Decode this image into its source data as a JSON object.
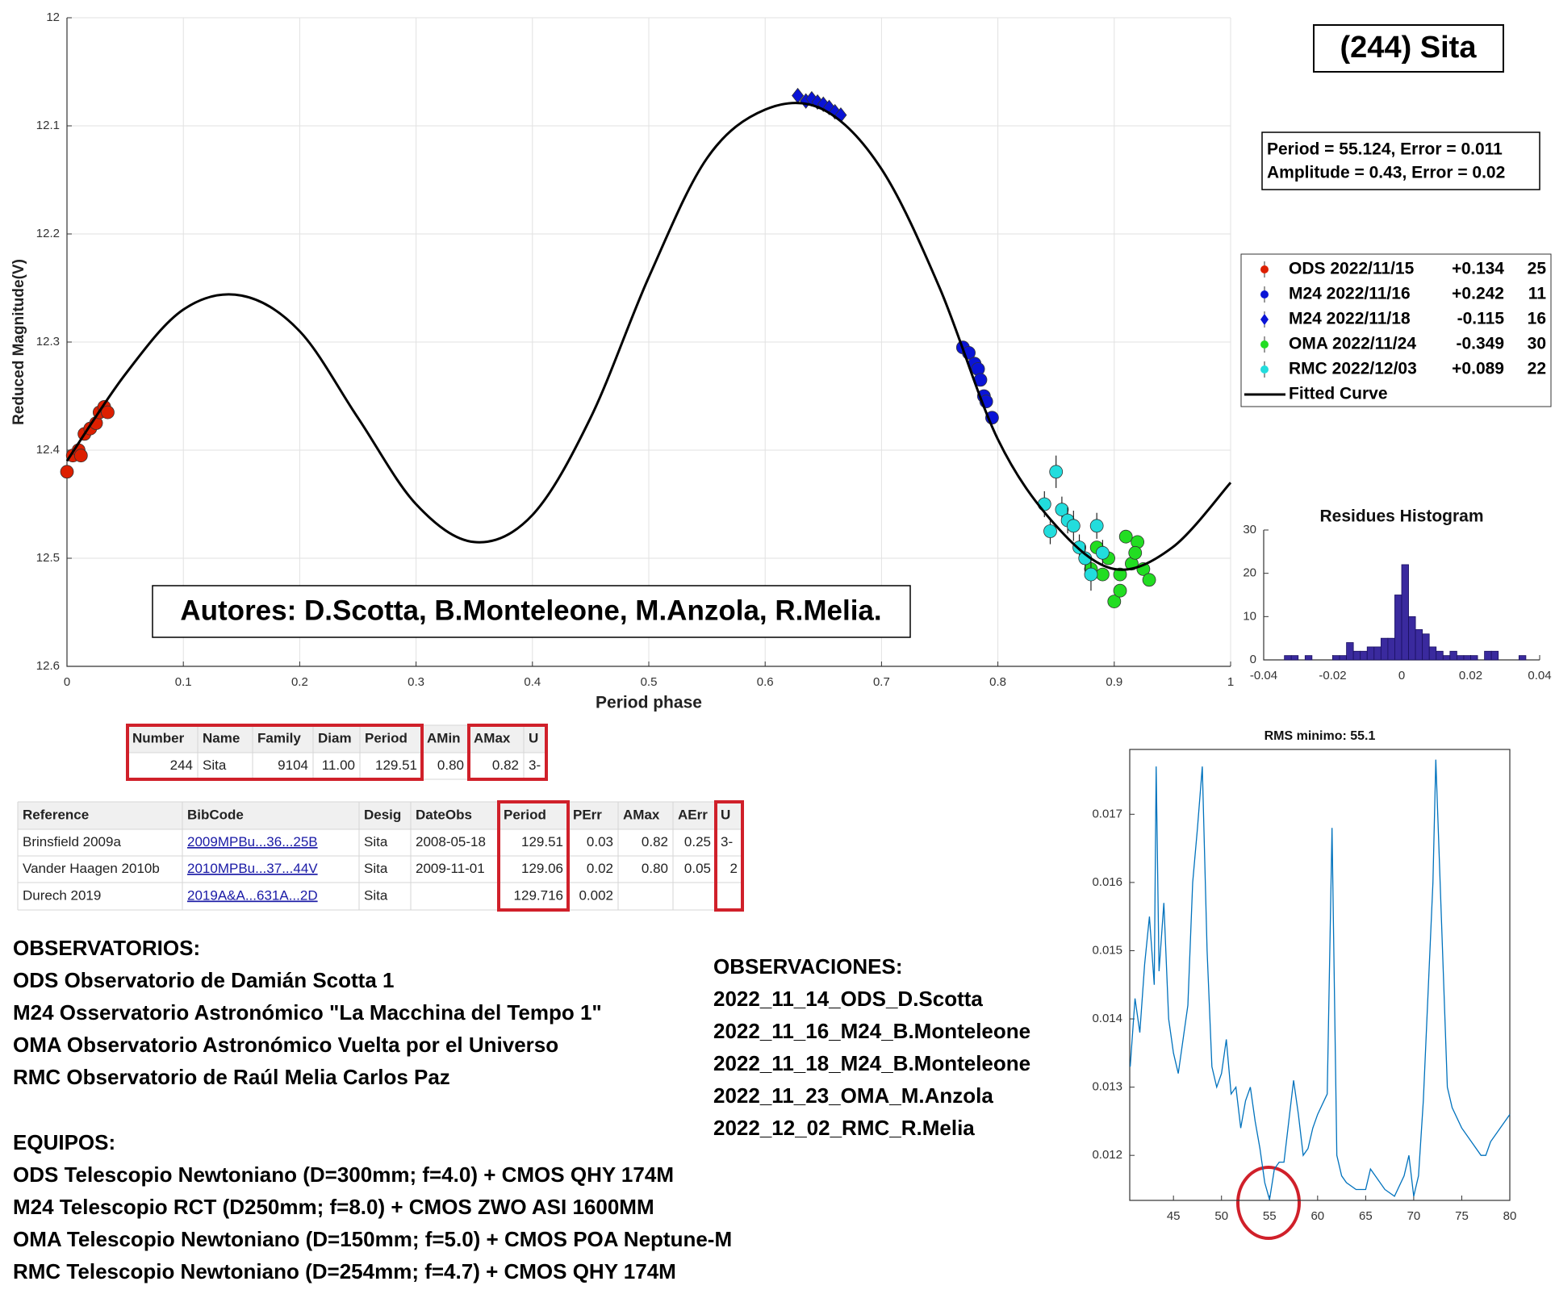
{
  "header": {
    "title": "(244) Sita",
    "fit_lines": [
      "Period =  55.124, Error = 0.011",
      "Amplitude = 0.43, Error = 0.02"
    ]
  },
  "chart_data": [
    {
      "type": "scatter",
      "xlabel": "Period phase",
      "ylabel": "Reduced Magnitude(V)",
      "annotation": "Autores: D.Scotta, B.Monteleone, M.Anzola, R.Melia.",
      "xlim": [
        0,
        1
      ],
      "ylim": [
        12.6,
        12
      ],
      "xticks": [
        0,
        0.1,
        0.2,
        0.3,
        0.4,
        0.5,
        0.6,
        0.7,
        0.8,
        0.9,
        1
      ],
      "yticks": [
        12,
        12.1,
        12.2,
        12.3,
        12.4,
        12.5,
        12.6
      ],
      "grid": true,
      "legend": "outside right",
      "series": [
        {
          "name": "ODS 2022/11/15",
          "offset": "+0.134",
          "count": 25,
          "color": "#dd1f00",
          "marker": "circle",
          "x": [
            0,
            0.005,
            0.01,
            0.012,
            0.015,
            0.02,
            0.025,
            0.028,
            0.032,
            0.035
          ],
          "values": [
            12.42,
            12.405,
            12.4,
            12.405,
            12.385,
            12.38,
            12.375,
            12.365,
            12.36,
            12.365
          ]
        },
        {
          "name": "M24 2022/11/16",
          "offset": "+0.242",
          "count": 11,
          "color": "#0a14d6",
          "marker": "circle",
          "x": [
            0.77,
            0.775,
            0.78,
            0.783,
            0.785,
            0.788,
            0.79,
            0.795
          ],
          "values": [
            12.305,
            12.31,
            12.32,
            12.325,
            12.335,
            12.35,
            12.355,
            12.37
          ]
        },
        {
          "name": "M24 2022/11/18",
          "offset": "-0.115",
          "count": 16,
          "color": "#0a14d6",
          "marker": "diamond",
          "x": [
            0.628,
            0.635,
            0.64,
            0.645,
            0.65,
            0.655,
            0.66,
            0.665
          ],
          "values": [
            12.072,
            12.077,
            12.075,
            12.078,
            12.08,
            12.083,
            12.087,
            12.09
          ]
        },
        {
          "name": "OMA 2022/11/24",
          "offset": "-0.349",
          "count": 30,
          "color": "#22dd22",
          "marker": "circle",
          "x": [
            0.88,
            0.885,
            0.89,
            0.895,
            0.9,
            0.905,
            0.91,
            0.915,
            0.92,
            0.925,
            0.93,
            0.905,
            0.918
          ],
          "values": [
            12.51,
            12.49,
            12.515,
            12.5,
            12.54,
            12.53,
            12.48,
            12.505,
            12.485,
            12.51,
            12.52,
            12.515,
            12.495
          ]
        },
        {
          "name": "RMC 2022/12/03",
          "offset": "+0.089",
          "count": 22,
          "color": "#22dddd",
          "marker": "circle",
          "x": [
            0.84,
            0.845,
            0.85,
            0.855,
            0.86,
            0.865,
            0.87,
            0.875,
            0.88,
            0.885,
            0.89
          ],
          "values": [
            12.45,
            12.475,
            12.42,
            12.455,
            12.465,
            12.47,
            12.49,
            12.5,
            12.515,
            12.47,
            12.495
          ],
          "errors": [
            0.012,
            0.012,
            0.015,
            0.012,
            0.012,
            0.014,
            0.012,
            0.012,
            0.015,
            0.012,
            0.012
          ]
        },
        {
          "name": "Fitted Curve",
          "color": "#000000",
          "marker": "line",
          "x": [
            0,
            0.05,
            0.1,
            0.15,
            0.2,
            0.25,
            0.3,
            0.35,
            0.4,
            0.45,
            0.5,
            0.55,
            0.6,
            0.65,
            0.7,
            0.75,
            0.8,
            0.85,
            0.9,
            0.95,
            1
          ],
          "values": [
            12.41,
            12.33,
            12.27,
            12.257,
            12.29,
            12.37,
            12.45,
            12.485,
            12.46,
            12.37,
            12.24,
            12.13,
            12.085,
            12.085,
            12.14,
            12.25,
            12.39,
            12.47,
            12.51,
            12.49,
            12.43
          ]
        }
      ]
    },
    {
      "type": "histogram",
      "title": "Residues Histogram",
      "color": "#3a2a9e",
      "xlim": [
        -0.04,
        0.04
      ],
      "ylim": [
        0,
        30
      ],
      "xticks": [
        -0.04,
        -0.02,
        0,
        0.02,
        0.04
      ],
      "yticks": [
        0,
        10,
        20,
        30
      ],
      "grid": false,
      "bins": [
        -0.034,
        -0.032,
        -0.03,
        -0.028,
        -0.026,
        -0.024,
        -0.022,
        -0.02,
        -0.018,
        -0.016,
        -0.014,
        -0.012,
        -0.01,
        -0.008,
        -0.006,
        -0.004,
        -0.002,
        0,
        0.002,
        0.004,
        0.006,
        0.008,
        0.01,
        0.012,
        0.014,
        0.016,
        0.018,
        0.02,
        0.022,
        0.024,
        0.026,
        0.028,
        0.03,
        0.032,
        0.034,
        0.036
      ],
      "counts": [
        1,
        1,
        0,
        1,
        0,
        0,
        0,
        1,
        1,
        4,
        2,
        2,
        3,
        3,
        5,
        5,
        15,
        22,
        10,
        7,
        6,
        3,
        2,
        1,
        2,
        1,
        1,
        1,
        0,
        2,
        2,
        0,
        0,
        0,
        1
      ]
    },
    {
      "type": "line",
      "title": "RMS minimo: 55.1",
      "color": "#0072bd",
      "xlim": [
        40.45,
        80
      ],
      "ylim": [
        0.01134,
        0.01795
      ],
      "xticks": [
        45,
        50,
        55,
        60,
        65,
        70,
        75,
        80
      ],
      "yticks": [
        0.012,
        0.013,
        0.014,
        0.015,
        0.016,
        0.017
      ],
      "grid": false,
      "x": [
        40.5,
        41,
        41.5,
        42,
        42.5,
        43,
        43.2,
        43.5,
        44,
        44.5,
        45,
        45.5,
        46,
        46.5,
        47,
        47.5,
        48,
        48.5,
        49,
        49.5,
        50,
        50.5,
        51,
        51.5,
        52,
        52.5,
        53,
        53.5,
        54,
        54.5,
        55,
        55.5,
        56,
        56.5,
        57,
        57.5,
        58,
        58.5,
        59,
        59.5,
        60,
        61,
        61.5,
        62,
        62.5,
        63,
        64,
        65,
        65.5,
        66,
        67,
        68,
        69,
        69.5,
        70,
        70.5,
        71,
        72,
        72.3,
        73,
        73.5,
        74,
        75,
        76,
        77,
        77.5,
        78,
        79,
        80
      ],
      "values": [
        0.0133,
        0.0143,
        0.0138,
        0.0148,
        0.0155,
        0.0145,
        0.0177,
        0.0147,
        0.0157,
        0.014,
        0.0135,
        0.0132,
        0.0137,
        0.0142,
        0.016,
        0.0168,
        0.0177,
        0.015,
        0.0133,
        0.013,
        0.0132,
        0.0137,
        0.0129,
        0.013,
        0.0124,
        0.0128,
        0.013,
        0.0125,
        0.0121,
        0.0116,
        0.01135,
        0.0118,
        0.0119,
        0.0119,
        0.0125,
        0.0131,
        0.0126,
        0.012,
        0.0121,
        0.0124,
        0.0126,
        0.0129,
        0.0168,
        0.012,
        0.0117,
        0.0116,
        0.0115,
        0.0115,
        0.0118,
        0.0117,
        0.0115,
        0.0114,
        0.0117,
        0.012,
        0.0114,
        0.0117,
        0.0128,
        0.016,
        0.0178,
        0.015,
        0.013,
        0.0127,
        0.0124,
        0.0122,
        0.012,
        0.012,
        0.0122,
        0.0124,
        0.0126
      ]
    }
  ],
  "tables": [
    {
      "header": [
        "Number",
        "Name",
        "Family",
        "Diam",
        "Period",
        "AMin",
        "AMax",
        "U"
      ],
      "rows": [
        [
          "244",
          "Sita",
          "9104",
          "11.00",
          "129.51",
          "0.80",
          "0.82",
          "3-"
        ]
      ]
    },
    {
      "header": [
        "Reference",
        "BibCode",
        "Desig",
        "DateObs",
        "Period",
        "PErr",
        "AMax",
        "AErr",
        "U"
      ],
      "rows": [
        [
          "Brinsfield 2009a",
          "2009MPBu...36...25B",
          "Sita",
          "2008-05-18",
          "129.51",
          "0.03",
          "0.82",
          "0.25",
          "3-"
        ],
        [
          "Vander Haagen 2010b",
          "2010MPBu...37...44V",
          "Sita",
          "2009-11-01",
          "129.06",
          "0.02",
          "0.80",
          "0.05",
          "2"
        ],
        [
          "Durech 2019",
          "2019A&A...631A...2D",
          "Sita",
          null,
          "129.716",
          "0.002",
          null,
          null,
          null
        ]
      ]
    }
  ],
  "notes": [
    {
      "title": "OBSERVATORIOS:",
      "lines": [
        "ODS Observatorio de Damián Scotta 1",
        "M24 Osservatorio Astronómico \"La Macchina del Tempo 1\"",
        "OMA Observatorio Astronómico Vuelta por el Universo",
        "RMC Observatorio de Raúl Melia Carlos Paz"
      ]
    },
    {
      "title": "EQUIPOS:",
      "lines": [
        "ODS Telescopio Newtoniano (D=300mm; f=4.0) + CMOS QHY 174M",
        "M24 Telescopio RCT (D250mm; f=8.0) + CMOS ZWO ASI 1600MM",
        "OMA Telescopio Newtoniano (D=150mm; f=5.0) + CMOS POA Neptune-M",
        "RMC Telescopio Newtoniano (D=254mm; f=4.7) + CMOS QHY 174M"
      ]
    },
    {
      "title": "OBSERVACIONES:",
      "lines": [
        "2022_11_14_ODS_D.Scotta",
        "2022_11_16_M24_B.Monteleone",
        "2022_11_18_M24_B.Monteleone",
        "2022_11_23_OMA_M.Anzola",
        "2022_12_02_RMC_R.Melia"
      ]
    }
  ]
}
